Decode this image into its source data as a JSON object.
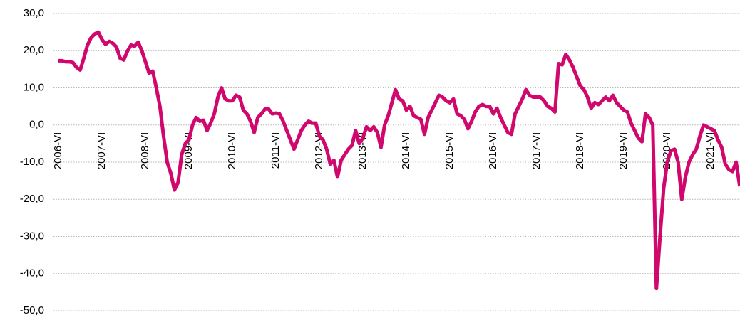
{
  "chart_data": {
    "type": "line",
    "categories": [
      "2006-VI",
      null,
      null,
      null,
      null,
      null,
      null,
      null,
      null,
      null,
      null,
      null,
      "2007-VI",
      null,
      null,
      null,
      null,
      null,
      null,
      null,
      null,
      null,
      null,
      null,
      "2008-VI",
      null,
      null,
      null,
      null,
      null,
      null,
      null,
      null,
      null,
      null,
      null,
      "2009-VI",
      null,
      null,
      null,
      null,
      null,
      null,
      null,
      null,
      null,
      null,
      null,
      "2010-VI",
      null,
      null,
      null,
      null,
      null,
      null,
      null,
      null,
      null,
      null,
      null,
      "2011-VI",
      null,
      null,
      null,
      null,
      null,
      null,
      null,
      null,
      null,
      null,
      null,
      "2012-VI",
      null,
      null,
      null,
      null,
      null,
      null,
      null,
      null,
      null,
      null,
      null,
      "2013-VI",
      null,
      null,
      null,
      null,
      null,
      null,
      null,
      null,
      null,
      null,
      null,
      "2014-VI",
      null,
      null,
      null,
      null,
      null,
      null,
      null,
      null,
      null,
      null,
      null,
      "2015-VI",
      null,
      null,
      null,
      null,
      null,
      null,
      null,
      null,
      null,
      null,
      null,
      "2016-VI",
      null,
      null,
      null,
      null,
      null,
      null,
      null,
      null,
      null,
      null,
      null,
      "2017-VI",
      null,
      null,
      null,
      null,
      null,
      null,
      null,
      null,
      null,
      null,
      null,
      "2018-VI",
      null,
      null,
      null,
      null,
      null,
      null,
      null,
      null,
      null,
      null,
      null,
      "2019-VI",
      null,
      null,
      null,
      null,
      null,
      null,
      null,
      null,
      null,
      null,
      null,
      "2020-VI",
      null,
      null,
      null,
      null,
      null,
      null,
      null,
      null,
      null,
      null,
      null,
      "2021-VI",
      null,
      null,
      null,
      null,
      null,
      null,
      null,
      null
    ],
    "series": [
      {
        "color": "#d0086d",
        "values": [
          17.3,
          17.3,
          17,
          17,
          16.8,
          15.5,
          14.8,
          18,
          21.5,
          23.5,
          24.5,
          25,
          23,
          21.7,
          22.5,
          22,
          21,
          18,
          17.5,
          19.8,
          21.5,
          21.2,
          22.3,
          20,
          17,
          14,
          14.5,
          10,
          5,
          -3,
          -10,
          -13,
          -17.5,
          -15.5,
          -8,
          -5,
          -4,
          0,
          2,
          1,
          1.3,
          -1.5,
          0.5,
          3,
          7.5,
          10,
          7,
          6.5,
          6.5,
          8,
          7.5,
          4,
          3,
          1,
          -2,
          2,
          3,
          4.3,
          4.3,
          3,
          3.2,
          3,
          1,
          -1.5,
          -4,
          -6.5,
          -4,
          -1.5,
          0,
          1,
          0.5,
          0.5,
          -3,
          -4,
          -6.5,
          -10.5,
          -9.5,
          -14,
          -9.5,
          -8,
          -6.5,
          -5.5,
          -1.5,
          -5,
          -3.5,
          -0.5,
          -1.5,
          -0.5,
          -2,
          -6,
          0,
          2.5,
          6,
          9.5,
          7,
          6.5,
          4,
          5,
          2.5,
          2,
          1.5,
          -2.5,
          2,
          4,
          6,
          8,
          7.5,
          6.5,
          6,
          7,
          3,
          2.5,
          1.5,
          -1,
          1,
          3.5,
          5,
          5.5,
          5,
          5,
          3,
          4.5,
          2,
          0,
          -2,
          -2.5,
          3,
          5,
          7,
          9.5,
          8,
          7.5,
          7.5,
          7.5,
          6.5,
          5,
          4.5,
          3.5,
          16.5,
          16.2,
          19,
          17.5,
          15.5,
          13,
          10.5,
          9.5,
          7.5,
          4.5,
          6,
          5.5,
          6.5,
          7.5,
          6.5,
          8,
          6,
          5,
          4,
          3.5,
          0.5,
          -1.5,
          -3.5,
          -4.5,
          3,
          2,
          0,
          -44,
          -30,
          -17,
          -10,
          -7,
          -6.5,
          -10,
          -20,
          -14,
          -10,
          -8,
          -6.5,
          -3,
          0,
          -0.5,
          -1,
          -1.5,
          -4,
          -6,
          -10.5,
          -12,
          -12.5,
          -10,
          -16.5
        ]
      }
    ],
    "ylim": [
      -50,
      30
    ],
    "yticks": [
      {
        "value": 30,
        "label": "30,0"
      },
      {
        "value": 20,
        "label": "20,0"
      },
      {
        "value": 10,
        "label": "10,0"
      },
      {
        "value": 0,
        "label": "0,0"
      },
      {
        "value": -10,
        "label": "-10,0"
      },
      {
        "value": -20,
        "label": "-20,0"
      },
      {
        "value": -30,
        "label": "-30,0"
      },
      {
        "value": -40,
        "label": "-40,0"
      },
      {
        "value": -50,
        "label": "-50,0"
      }
    ],
    "grid": true
  }
}
